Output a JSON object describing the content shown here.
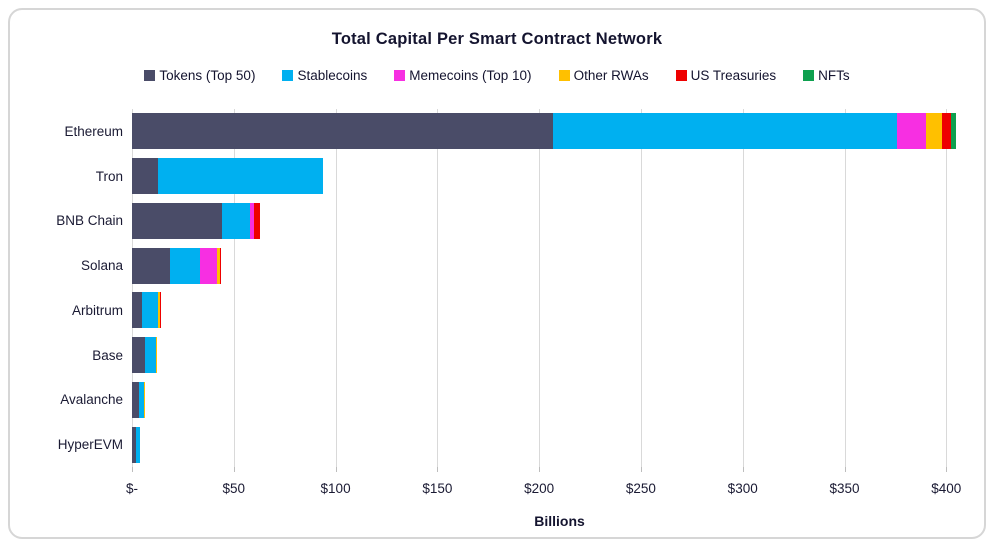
{
  "chart_data": {
    "type": "bar",
    "orientation": "horizontal",
    "stacked": true,
    "title": "Total Capital Per Smart Contract Network",
    "xlabel": "Billions",
    "categories": [
      "Ethereum",
      "Tron",
      "BNB Chain",
      "Solana",
      "Arbitrum",
      "Base",
      "Avalanche",
      "HyperEVM"
    ],
    "series": [
      {
        "name": "Tokens (Top 50)",
        "color": "#4a4c68",
        "values": [
          207,
          13,
          44,
          18.5,
          4.7,
          6.3,
          3.5,
          2.2
        ]
      },
      {
        "name": "Stablecoins",
        "color": "#00b0f0",
        "values": [
          169,
          81,
          14,
          15,
          8.2,
          5.4,
          2.5,
          1.6
        ]
      },
      {
        "name": "Memecoins (Top 10)",
        "color": "#f72fe2",
        "values": [
          14,
          0,
          2,
          8.5,
          0,
          0,
          0,
          0
        ]
      },
      {
        "name": "Other RWAs",
        "color": "#ffc000",
        "values": [
          8,
          0,
          0,
          1,
          0.8,
          0.8,
          0.6,
          0
        ]
      },
      {
        "name": "US Treasuries",
        "color": "#ee0000",
        "values": [
          4.5,
          0,
          3,
          0.5,
          0.5,
          0,
          0,
          0
        ]
      },
      {
        "name": "NFTs",
        "color": "#0ea04f",
        "values": [
          2.5,
          0,
          0,
          0,
          0,
          0,
          0,
          0
        ]
      }
    ],
    "x_ticks": [
      "$-",
      "$50",
      "$100",
      "$150",
      "$200",
      "$250",
      "$300",
      "$350",
      "$400"
    ],
    "x_tick_values": [
      0,
      50,
      100,
      150,
      200,
      250,
      300,
      350,
      400
    ],
    "xlim": [
      0,
      420
    ],
    "grid": true,
    "legend_position": "top"
  },
  "style_colors": {
    "text": "#14142f",
    "gridline": "#d9d9d9",
    "card_border": "#d6d6d6",
    "background": "#ffffff"
  }
}
